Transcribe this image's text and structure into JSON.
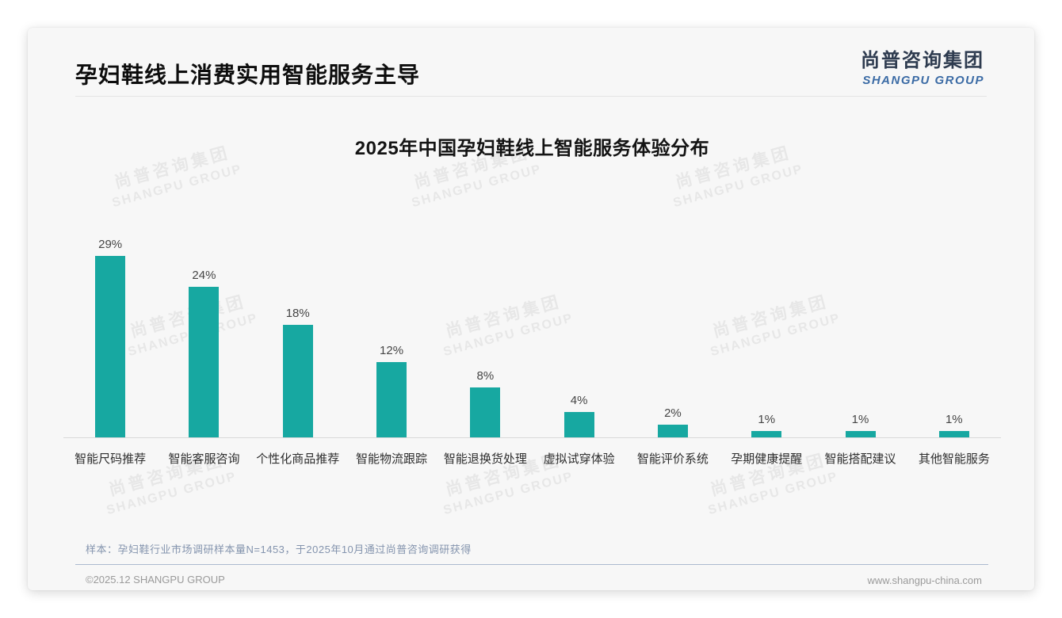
{
  "slide": {
    "title": "孕妇鞋线上消费实用智能服务主导",
    "logo": {
      "cn": "尚普咨询集团",
      "en": "SHANGPU GROUP"
    },
    "watermark": {
      "cn": "尚普咨询集团",
      "en": "SHANGPU GROUP"
    },
    "footnote": "样本：孕妇鞋行业市场调研样本量N=1453，于2025年10月通过尚普咨询调研获得",
    "footer": {
      "left": "©2025.12 SHANGPU GROUP",
      "right": "www.shangpu-china.com"
    },
    "colors": {
      "logo_cn": "#2e3b4f",
      "logo_en": "#3b6ba5",
      "footnote": "#8494ae",
      "footer_divider": "#8ba0bd"
    }
  },
  "chart_data": {
    "type": "bar",
    "title": "2025年中国孕妇鞋线上智能服务体验分布",
    "categories": [
      "智能尺码推荐",
      "智能客服咨询",
      "个性化商品推荐",
      "智能物流跟踪",
      "智能退换货处理",
      "虚拟试穿体验",
      "智能评价系统",
      "孕期健康提醒",
      "智能搭配建议",
      "其他智能服务"
    ],
    "values": [
      29,
      24,
      18,
      12,
      8,
      4,
      2,
      1,
      1,
      1
    ],
    "unit": "%",
    "bar_color": "#17a8a1",
    "value_labels": true,
    "xlabel": "",
    "ylabel": "",
    "ylim": [
      0,
      30
    ],
    "grid": false,
    "legend": false
  }
}
